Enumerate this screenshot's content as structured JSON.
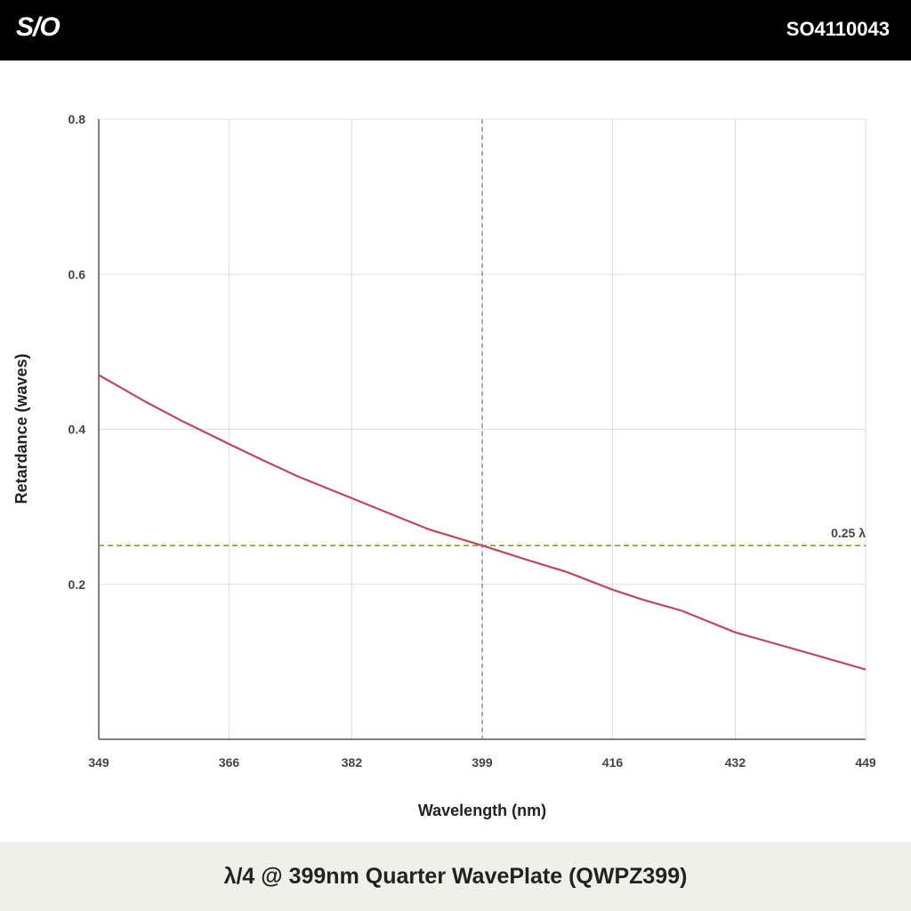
{
  "header": {
    "logo": "S/O",
    "code": "SO4110043"
  },
  "footer": {
    "title": "λ/4 @ 399nm Quarter WavePlate (QWPZ399)"
  },
  "colors": {
    "curve": "#c0485a",
    "reference": "#7a9a2a",
    "marker": "#777777",
    "grid": "#dddddd",
    "axis": "#555555"
  },
  "chart_data": {
    "type": "line",
    "xlabel": "Wavelength (nm)",
    "ylabel": "Retardance (waves)",
    "xlim": [
      349,
      449
    ],
    "ylim": [
      0,
      0.8
    ],
    "x_ticks": [
      349,
      366,
      382,
      399,
      416,
      432,
      449
    ],
    "y_ticks": [
      0.2,
      0.4,
      0.6,
      0.8
    ],
    "y_tick_labels": [
      "0.2",
      "0.4",
      "0.6",
      "0.8"
    ],
    "grid": true,
    "series": [
      {
        "x": [
          349,
          355,
          360,
          366,
          370,
          375,
          382,
          387,
          392,
          399,
          405,
          410,
          416,
          420,
          425,
          432,
          437,
          442,
          449
        ],
        "y": [
          0.47,
          0.436,
          0.41,
          0.381,
          0.362,
          0.339,
          0.311,
          0.291,
          0.271,
          0.25,
          0.231,
          0.216,
          0.193,
          0.18,
          0.166,
          0.138,
          0.124,
          0.11,
          0.09
        ]
      }
    ],
    "reference_line": {
      "y": 0.25,
      "label": "0.25 λ",
      "style": "dashed"
    },
    "marker_line": {
      "x": 399,
      "style": "dashed"
    }
  }
}
